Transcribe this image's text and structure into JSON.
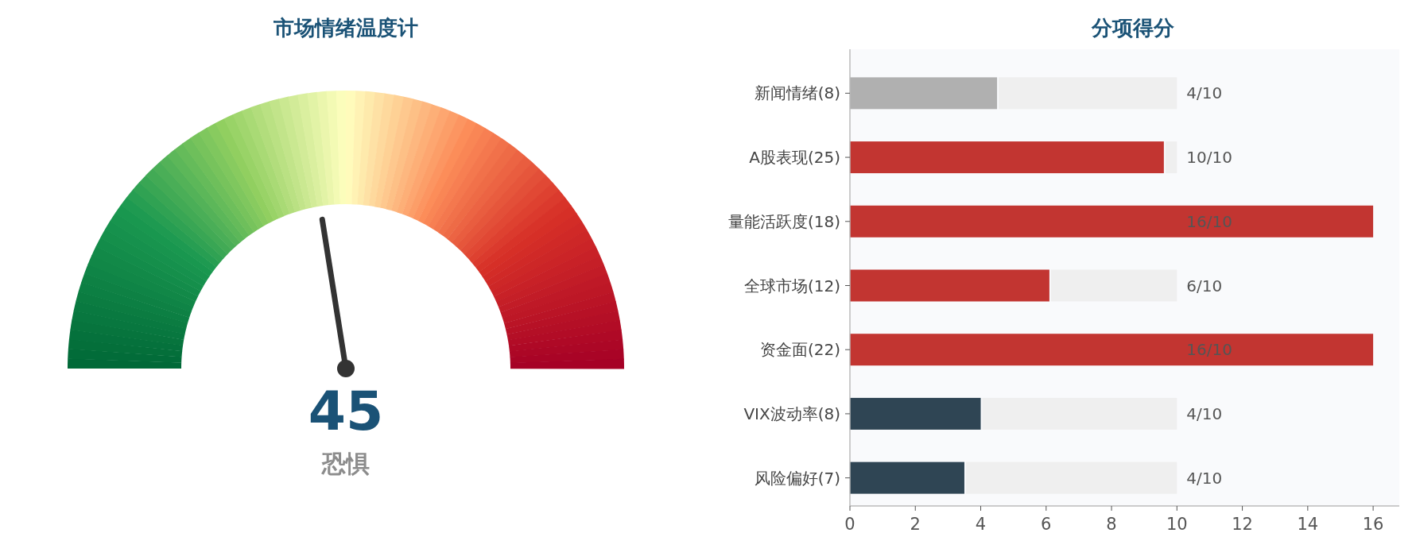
{
  "chart_data": [
    {
      "type": "other",
      "title": "市场情绪温度计",
      "values": [
        45
      ],
      "value_labels": [
        "45"
      ],
      "annotations": [
        "恐惧"
      ]
    },
    {
      "type": "bar",
      "title": "分项得分",
      "orientation": "horizontal",
      "stacked": true,
      "grid": false,
      "categories": [
        "新闻情绪(8)",
        "A股表现(25)",
        "量能活跃度(18)",
        "全球市场(12)",
        "资金面(22)",
        "VIX波动率(8)",
        "风险偏好(7)"
      ],
      "series": [
        {
          "colors": [
            "#b0b0b0",
            "#c23531",
            "#c23531",
            "#c23531",
            "#c23531",
            "#2f4554",
            "#2f4554"
          ],
          "values": [
            4.5,
            9.6,
            16,
            6.1,
            16,
            4.0,
            3.5
          ]
        },
        {
          "color": "#efefef",
          "values": [
            5.5,
            0.4,
            null,
            3.9,
            null,
            6.0,
            6.5
          ]
        }
      ],
      "annotations": [
        "4/10",
        "10/10",
        "16/10",
        "6/10",
        "16/10",
        "4/10",
        "4/10"
      ],
      "xlim": [
        0,
        16.8
      ],
      "xticks": [
        0,
        2,
        4,
        6,
        8,
        10,
        12,
        14,
        16
      ]
    }
  ]
}
